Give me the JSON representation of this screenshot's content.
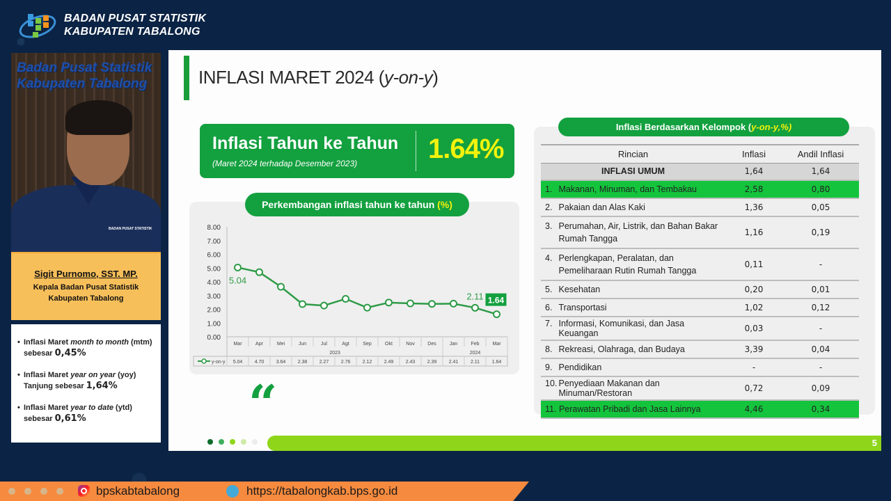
{
  "header": {
    "org_line1": "BADAN PUSAT STATISTIK",
    "org_line2": "KABUPATEN TABALONG"
  },
  "speaker": {
    "video_sign_line1": "Badan Pusat Statistik",
    "video_sign_line2": "Kabupaten Tabalong",
    "shirt_logo": "BADAN PUSAT STATISTIK",
    "name": "Sigit Purnomo, SST. MP.",
    "title_line1": "Kepala Badan Pusat Statistik",
    "title_line2": "Kabupaten Tabalong"
  },
  "summary": [
    {
      "pre": "Inflasi Maret ",
      "em": "month to month",
      "post": " (mtm) sebesar",
      "value": "0,45%"
    },
    {
      "pre": "Inflasi Maret ",
      "em": "year on year",
      "post": " (yoy) Tanjung sebesar",
      "value": "1,64%"
    },
    {
      "pre": "Inflasi Maret ",
      "em": "year to date",
      "post": " (ytd) sebesar",
      "value": "0,61%"
    }
  ],
  "slide": {
    "title": "INFLASI MARET 2024 (",
    "title_em": "y-on-y",
    "title_close": ")",
    "kpi": {
      "label": "Inflasi Tahun ke Tahun",
      "sub": "(Maret 2024 terhadap Desember 2023)",
      "value": "1.64%"
    },
    "chart_pill": "Perkembangan inflasi tahun ke tahun ",
    "chart_pill_pct": "(%)",
    "quote_glyph": "“",
    "table_pill": "Inflasi Berdasarkan Kelompok (",
    "table_pill_em": "y-on-y,%)",
    "table": {
      "headers": [
        "Rincian",
        "Inflasi",
        "Andil Inflasi"
      ],
      "umum": {
        "label": "INFLASI UMUM",
        "inflasi": "1,64",
        "andil": "1,64"
      },
      "rows": [
        {
          "no": "1.",
          "label": "Makanan, Minuman, dan Tembakau",
          "inflasi": "2,58",
          "andil": "0,80",
          "highlight": true
        },
        {
          "no": "2.",
          "label": "Pakaian dan Alas Kaki",
          "inflasi": "1,36",
          "andil": "0,05"
        },
        {
          "no": "3.",
          "label": "Perumahan, Air, Listrik, dan Bahan Bakar Rumah Tangga",
          "inflasi": "1,16",
          "andil": "0,19",
          "tall": true
        },
        {
          "no": "4.",
          "label": "Perlengkapan, Peralatan, dan Pemeliharaan Rutin Rumah Tangga",
          "inflasi": "0,11",
          "andil": "-",
          "tall": true
        },
        {
          "no": "5.",
          "label": "Kesehatan",
          "inflasi": "0,20",
          "andil": "0,01"
        },
        {
          "no": "6.",
          "label": "Transportasi",
          "inflasi": "1,02",
          "andil": "0,12"
        },
        {
          "no": "7.",
          "label": "Informasi, Komunikasi, dan Jasa Keuangan",
          "inflasi": "0,03",
          "andil": "-"
        },
        {
          "no": "8.",
          "label": "Rekreasi, Olahraga, dan Budaya",
          "inflasi": "3,39",
          "andil": "0,04"
        },
        {
          "no": "9.",
          "label": "Pendidikan",
          "inflasi": "-",
          "andil": "-"
        },
        {
          "no": "10.",
          "label": "Penyediaan Makanan dan Minuman/Restoran",
          "inflasi": "0,72",
          "andil": "0,09"
        },
        {
          "no": "11.",
          "label": "Perawatan Pribadi dan Jasa Lainnya",
          "inflasi": "4,46",
          "andil": "0,34",
          "highlight": true
        }
      ]
    },
    "page_number": "5",
    "progress_dots": [
      "#0f6b2c",
      "#3fae5e",
      "#8fd61a",
      "#cfe9a6",
      "#ececec"
    ]
  },
  "chart_data": {
    "type": "line",
    "title": "Perkembangan inflasi tahun ke tahun (%)",
    "categories": [
      "Mar",
      "Apr",
      "Mei",
      "Jun",
      "Jul",
      "Agt",
      "Sep",
      "Okt",
      "Nov",
      "Des",
      "Jan",
      "Feb",
      "Mar"
    ],
    "year_groups": [
      {
        "label": "2023",
        "span": 10
      },
      {
        "label": "2024",
        "span": 3
      }
    ],
    "series": [
      {
        "name": "y-on-y",
        "values": [
          5.04,
          4.7,
          3.64,
          2.38,
          2.27,
          2.76,
          2.12,
          2.49,
          2.43,
          2.39,
          2.41,
          2.11,
          1.64
        ]
      }
    ],
    "table_values": [
      "5.04",
      "4.70",
      "3.64",
      "2.38",
      "2.27",
      "2.76",
      "2.12",
      "2.49",
      "2.43",
      "2.39",
      "2.41",
      "2.11",
      "1.64"
    ],
    "yticks": [
      "8.00",
      "7.00",
      "6.00",
      "5.00",
      "4.00",
      "3.00",
      "2.00",
      "1.00",
      "0.00"
    ],
    "ylim": [
      0,
      8
    ],
    "annotations": [
      {
        "index": 0,
        "text": "5.04"
      },
      {
        "index": 11,
        "text": "2.11"
      },
      {
        "index": 12,
        "text": "1.64",
        "boxed": true
      }
    ],
    "color": "#2e9b47",
    "xlabel": "",
    "ylabel": ""
  },
  "footer": {
    "instagram": "bpskabtabalong",
    "website": "https://tabalongkab.bps.go.id"
  }
}
